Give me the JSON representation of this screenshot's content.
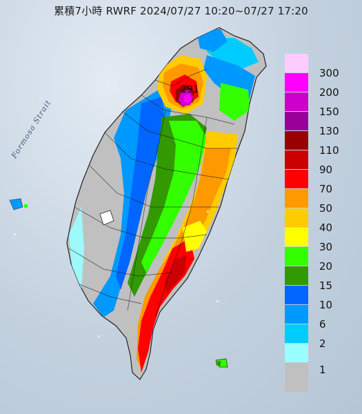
{
  "title": "累積7小時 RWRF 2024/07/27 10:20~07/27 17:20",
  "strait_label": "Formosa Strait",
  "peak_value": "291",
  "legend": [
    {
      "label": "300",
      "color": "#ffccff"
    },
    {
      "label": "200",
      "color": "#ff00ff"
    },
    {
      "label": "150",
      "color": "#cc00cc"
    },
    {
      "label": "130",
      "color": "#990099"
    },
    {
      "label": "110",
      "color": "#990000"
    },
    {
      "label": "90",
      "color": "#cc0000"
    },
    {
      "label": "70",
      "color": "#ff0000"
    },
    {
      "label": "50",
      "color": "#ff9900"
    },
    {
      "label": "40",
      "color": "#ffcc00"
    },
    {
      "label": "30",
      "color": "#ffff00"
    },
    {
      "label": "20",
      "color": "#33ff00"
    },
    {
      "label": "15",
      "color": "#339900"
    },
    {
      "label": "10",
      "color": "#0066ff"
    },
    {
      "label": "6",
      "color": "#0099ff"
    },
    {
      "label": "2",
      "color": "#00ccff"
    },
    {
      "label": "1",
      "color": "#99ffff"
    },
    {
      "label": "",
      "color": "#c0c0c0"
    }
  ]
}
